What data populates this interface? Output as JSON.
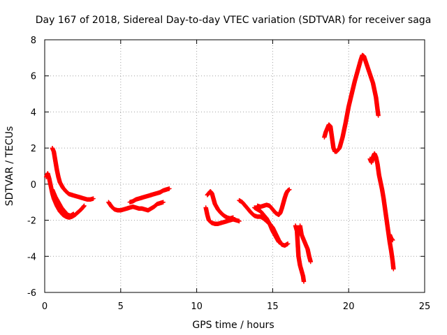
{
  "chart_data": {
    "type": "scatter",
    "title": "Day 167 of 2018, Sidereal Day-to-day VTEC variation (SDTVAR) for receiver saga",
    "xlabel": "GPS time / hours",
    "ylabel": "SDTVAR / TECUs",
    "xlim": [
      0,
      25
    ],
    "ylim": [
      -6,
      8
    ],
    "xticks": [
      0,
      5,
      10,
      15,
      20,
      25
    ],
    "yticks": [
      -6,
      -4,
      -2,
      0,
      2,
      4,
      6,
      8
    ],
    "grid": true,
    "marker": "plus",
    "color": "#ff0000",
    "series": [
      {
        "segments": [
          [
            [
              0.1,
              0.4
            ],
            [
              0.2,
              0.6
            ],
            [
              0.3,
              0.3
            ],
            [
              0.4,
              -0.1
            ],
            [
              0.5,
              -0.5
            ],
            [
              0.6,
              -0.8
            ],
            [
              0.8,
              -1.2
            ],
            [
              1.0,
              -1.5
            ],
            [
              1.2,
              -1.7
            ],
            [
              1.4,
              -1.8
            ],
            [
              1.6,
              -1.85
            ],
            [
              1.8,
              -1.8
            ],
            [
              2.0,
              -1.7
            ],
            [
              2.2,
              -1.55
            ],
            [
              2.4,
              -1.4
            ],
            [
              2.6,
              -1.2
            ]
          ],
          [
            [
              0.5,
              -0.3
            ],
            [
              0.7,
              -0.7
            ],
            [
              0.9,
              -1.0
            ],
            [
              1.1,
              -1.3
            ],
            [
              1.3,
              -1.5
            ],
            [
              1.5,
              -1.7
            ],
            [
              1.7,
              -1.75
            ],
            [
              1.9,
              -1.65
            ]
          ],
          [
            [
              0.5,
              2.0
            ],
            [
              0.6,
              1.8
            ],
            [
              0.7,
              1.3
            ],
            [
              0.8,
              0.8
            ],
            [
              0.9,
              0.4
            ],
            [
              1.0,
              0.1
            ],
            [
              1.2,
              -0.2
            ],
            [
              1.4,
              -0.4
            ],
            [
              1.6,
              -0.55
            ],
            [
              1.8,
              -0.6
            ],
            [
              2.0,
              -0.65
            ],
            [
              2.2,
              -0.7
            ],
            [
              2.4,
              -0.75
            ],
            [
              2.6,
              -0.8
            ],
            [
              2.8,
              -0.85
            ],
            [
              3.0,
              -0.85
            ],
            [
              3.2,
              -0.8
            ]
          ],
          [
            [
              4.2,
              -1.0
            ],
            [
              4.4,
              -1.25
            ],
            [
              4.6,
              -1.4
            ],
            [
              4.8,
              -1.45
            ],
            [
              5.0,
              -1.45
            ],
            [
              5.2,
              -1.4
            ],
            [
              5.4,
              -1.35
            ],
            [
              5.6,
              -1.3
            ],
            [
              5.8,
              -1.25
            ],
            [
              6.0,
              -1.3
            ],
            [
              6.2,
              -1.35
            ],
            [
              6.4,
              -1.35
            ],
            [
              6.6,
              -1.4
            ],
            [
              6.8,
              -1.45
            ],
            [
              7.0,
              -1.35
            ],
            [
              7.2,
              -1.25
            ],
            [
              7.4,
              -1.1
            ],
            [
              7.6,
              -1.05
            ],
            [
              7.8,
              -1.0
            ]
          ],
          [
            [
              5.6,
              -1.0
            ],
            [
              5.8,
              -0.95
            ],
            [
              6.0,
              -0.85
            ],
            [
              6.2,
              -0.8
            ],
            [
              6.4,
              -0.75
            ],
            [
              6.6,
              -0.7
            ],
            [
              6.8,
              -0.65
            ],
            [
              7.0,
              -0.6
            ],
            [
              7.2,
              -0.55
            ],
            [
              7.4,
              -0.5
            ],
            [
              7.6,
              -0.45
            ],
            [
              7.8,
              -0.35
            ],
            [
              8.0,
              -0.3
            ],
            [
              8.2,
              -0.25
            ]
          ],
          [
            [
              10.6,
              -1.3
            ],
            [
              10.7,
              -1.7
            ],
            [
              10.8,
              -2.0
            ],
            [
              11.0,
              -2.15
            ],
            [
              11.2,
              -2.2
            ],
            [
              11.4,
              -2.2
            ],
            [
              11.6,
              -2.15
            ],
            [
              11.8,
              -2.1
            ],
            [
              12.0,
              -2.05
            ],
            [
              12.2,
              -2.0
            ],
            [
              12.4,
              -1.95
            ],
            [
              12.6,
              -2.0
            ],
            [
              12.8,
              -2.05
            ]
          ],
          [
            [
              10.7,
              -0.6
            ],
            [
              10.8,
              -0.5
            ],
            [
              10.9,
              -0.4
            ],
            [
              11.0,
              -0.5
            ],
            [
              11.1,
              -0.8
            ],
            [
              11.2,
              -1.1
            ],
            [
              11.4,
              -1.4
            ],
            [
              11.6,
              -1.6
            ],
            [
              11.8,
              -1.75
            ],
            [
              12.0,
              -1.85
            ],
            [
              12.2,
              -1.9
            ],
            [
              12.4,
              -1.85
            ]
          ],
          [
            [
              12.8,
              -0.9
            ],
            [
              13.0,
              -1.0
            ],
            [
              13.2,
              -1.2
            ],
            [
              13.4,
              -1.4
            ],
            [
              13.6,
              -1.6
            ],
            [
              13.8,
              -1.75
            ],
            [
              14.0,
              -1.8
            ],
            [
              14.2,
              -1.8
            ],
            [
              14.4,
              -1.9
            ],
            [
              14.6,
              -2.05
            ],
            [
              14.8,
              -2.2
            ],
            [
              15.0,
              -2.4
            ],
            [
              15.2,
              -2.75
            ],
            [
              15.4,
              -3.1
            ],
            [
              15.6,
              -3.35
            ],
            [
              15.8,
              -3.4
            ],
            [
              16.0,
              -3.3
            ]
          ],
          [
            [
              13.8,
              -1.3
            ],
            [
              14.0,
              -1.4
            ],
            [
              14.2,
              -1.5
            ],
            [
              14.4,
              -1.7
            ],
            [
              14.6,
              -1.9
            ],
            [
              14.8,
              -2.2
            ],
            [
              15.0,
              -2.6
            ],
            [
              15.2,
              -2.9
            ],
            [
              15.4,
              -3.2
            ],
            [
              15.6,
              -3.3
            ]
          ],
          [
            [
              14.0,
              -1.2
            ],
            [
              14.2,
              -1.25
            ],
            [
              14.4,
              -1.2
            ],
            [
              14.6,
              -1.15
            ],
            [
              14.8,
              -1.2
            ],
            [
              15.0,
              -1.4
            ],
            [
              15.2,
              -1.6
            ],
            [
              15.4,
              -1.7
            ],
            [
              15.5,
              -1.6
            ],
            [
              15.6,
              -1.35
            ],
            [
              15.7,
              -1.05
            ],
            [
              15.8,
              -0.75
            ],
            [
              15.9,
              -0.5
            ],
            [
              16.0,
              -0.35
            ],
            [
              16.1,
              -0.3
            ]
          ],
          [
            [
              16.5,
              -2.3
            ],
            [
              16.6,
              -2.6
            ],
            [
              16.65,
              -3.3
            ],
            [
              16.7,
              -4.0
            ],
            [
              16.8,
              -4.5
            ],
            [
              16.9,
              -4.8
            ],
            [
              17.0,
              -5.1
            ],
            [
              17.05,
              -5.4
            ]
          ],
          [
            [
              16.8,
              -2.3
            ],
            [
              16.9,
              -2.8
            ],
            [
              17.1,
              -3.2
            ],
            [
              17.3,
              -3.6
            ],
            [
              17.4,
              -4.0
            ],
            [
              17.5,
              -4.3
            ]
          ],
          [
            [
              18.4,
              2.6
            ],
            [
              18.5,
              2.9
            ],
            [
              18.6,
              3.1
            ],
            [
              18.7,
              3.3
            ],
            [
              18.8,
              3.2
            ],
            [
              18.9,
              2.6
            ],
            [
              19.0,
              2.0
            ],
            [
              19.1,
              1.8
            ],
            [
              19.2,
              1.8
            ],
            [
              19.4,
              2.0
            ],
            [
              19.6,
              2.6
            ],
            [
              19.8,
              3.4
            ],
            [
              20.0,
              4.3
            ],
            [
              20.2,
              5.0
            ],
            [
              20.4,
              5.7
            ],
            [
              20.6,
              6.3
            ],
            [
              20.8,
              6.9
            ],
            [
              20.9,
              7.15
            ],
            [
              21.0,
              7.1
            ],
            [
              21.2,
              6.6
            ],
            [
              21.4,
              6.1
            ],
            [
              21.6,
              5.6
            ],
            [
              21.8,
              4.8
            ],
            [
              21.95,
              3.8
            ]
          ],
          [
            [
              21.4,
              1.4
            ],
            [
              21.5,
              1.2
            ],
            [
              21.6,
              1.5
            ],
            [
              21.7,
              1.7
            ],
            [
              21.8,
              1.5
            ],
            [
              21.9,
              1.1
            ],
            [
              22.0,
              0.5
            ],
            [
              22.2,
              -0.3
            ],
            [
              22.3,
              -0.8
            ],
            [
              22.4,
              -1.4
            ],
            [
              22.5,
              -2.0
            ],
            [
              22.6,
              -2.6
            ],
            [
              22.7,
              -3.2
            ],
            [
              22.8,
              -3.7
            ],
            [
              22.9,
              -4.3
            ],
            [
              22.95,
              -4.7
            ]
          ],
          [
            [
              22.7,
              -2.8
            ],
            [
              22.8,
              -3.0
            ],
            [
              22.9,
              -3.1
            ]
          ]
        ]
      }
    ]
  }
}
